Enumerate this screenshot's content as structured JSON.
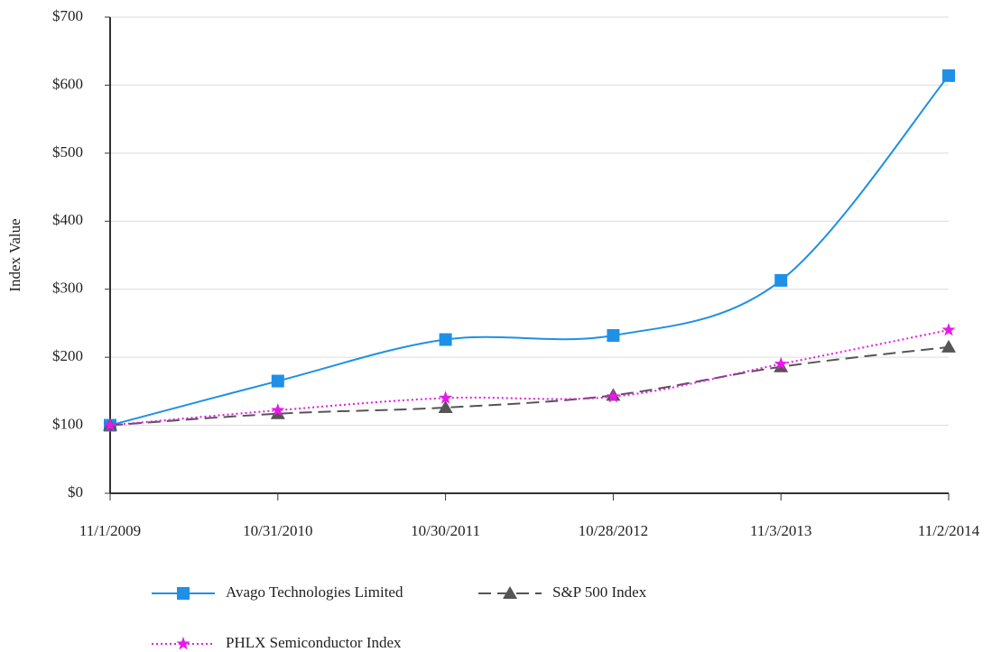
{
  "chart_data": {
    "type": "line",
    "y_label": "Index Value",
    "categories": [
      "11/1/2009",
      "10/31/2010",
      "10/30/2011",
      "10/28/2012",
      "11/3/2013",
      "11/2/2014"
    ],
    "series": [
      {
        "name": "Avago Technologies Limited",
        "color": "#1e90e8",
        "style": "solid",
        "marker": "square",
        "values": [
          100,
          165,
          226,
          232,
          313,
          614
        ]
      },
      {
        "name": "S&P 500 Index",
        "color": "#555555",
        "style": "dashed",
        "marker": "triangle",
        "values": [
          100,
          117,
          126,
          144,
          186,
          215
        ]
      },
      {
        "name": "PHLX Semiconductor Index",
        "color": "#e619e6",
        "style": "dotted",
        "marker": "star",
        "values": [
          100,
          122,
          140,
          142,
          190,
          240
        ]
      }
    ],
    "ylim": [
      0,
      700
    ],
    "yticks": [
      {
        "value": 0,
        "label": "$0"
      },
      {
        "value": 100,
        "label": "$100"
      },
      {
        "value": 200,
        "label": "$200"
      },
      {
        "value": 300,
        "label": "$300"
      },
      {
        "value": 400,
        "label": "$400"
      },
      {
        "value": 500,
        "label": "$500"
      },
      {
        "value": 600,
        "label": "$600"
      },
      {
        "value": 700,
        "label": "$700"
      }
    ],
    "grid": true,
    "smooth": true
  }
}
